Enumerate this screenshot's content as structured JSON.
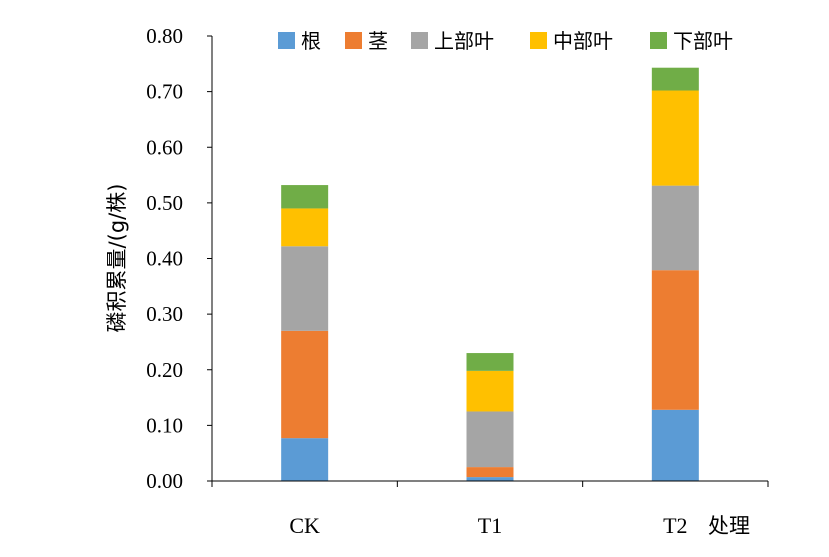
{
  "chart_data": {
    "type": "bar",
    "stacked": true,
    "categories": [
      "CK",
      "T1",
      "T2"
    ],
    "xlabel": "处理",
    "ylabel": "磷积累量/(g/株)",
    "ylim": [
      0,
      0.8
    ],
    "yticks": [
      "0.00",
      "0.10",
      "0.20",
      "0.30",
      "0.40",
      "0.50",
      "0.60",
      "0.70",
      "0.80"
    ],
    "grid": false,
    "legend_position": "top",
    "series": [
      {
        "name": "根",
        "color": "#5B9BD5",
        "values": [
          0.077,
          0.007,
          0.128
        ]
      },
      {
        "name": "茎",
        "color": "#ED7D31",
        "values": [
          0.193,
          0.018,
          0.251
        ]
      },
      {
        "name": "上部叶",
        "color": "#A5A5A5",
        "values": [
          0.152,
          0.1,
          0.152
        ]
      },
      {
        "name": "中部叶",
        "color": "#FFC000",
        "values": [
          0.068,
          0.073,
          0.171
        ]
      },
      {
        "name": "下部叶",
        "color": "#70AD47",
        "values": [
          0.042,
          0.032,
          0.041
        ]
      }
    ]
  }
}
